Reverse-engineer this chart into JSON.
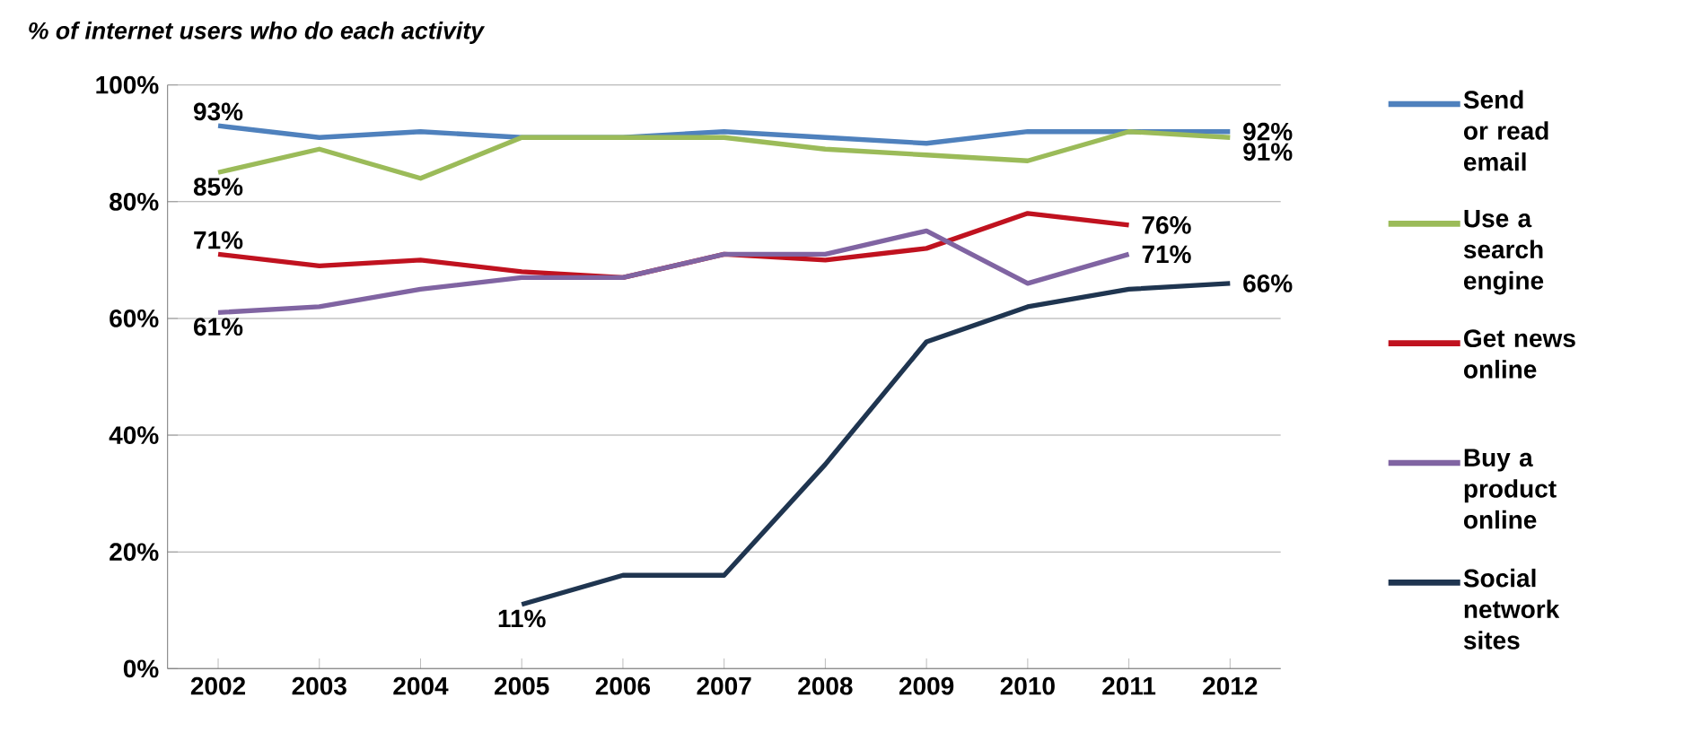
{
  "chart_data": {
    "type": "line",
    "title": "% of internet users who do each activity",
    "categories": [
      "2002",
      "2003",
      "2004",
      "2005",
      "2006",
      "2007",
      "2008",
      "2009",
      "2010",
      "2011",
      "2012"
    ],
    "series": [
      {
        "name": "Send or read email",
        "color": "#4f81bd",
        "values": [
          93,
          91,
          92,
          91,
          91,
          92,
          91,
          90,
          92,
          92,
          92
        ],
        "value_labels": [
          "93%",
          null,
          null,
          null,
          null,
          null,
          null,
          null,
          null,
          null,
          "92%"
        ]
      },
      {
        "name": "Use a search engine",
        "color": "#9bbb59",
        "values": [
          85,
          89,
          84,
          91,
          91,
          91,
          89,
          88,
          87,
          92,
          91
        ],
        "value_labels": [
          "85%",
          null,
          null,
          null,
          null,
          null,
          null,
          null,
          null,
          null,
          "91%"
        ]
      },
      {
        "name": "Get news online",
        "color": "#c0121f",
        "values": [
          71,
          69,
          70,
          68,
          67,
          71,
          70,
          72,
          78,
          76,
          null
        ],
        "value_labels": [
          "71%",
          null,
          null,
          null,
          null,
          null,
          null,
          null,
          null,
          "76%",
          null
        ]
      },
      {
        "name": "Buy a product online",
        "color": "#8064a2",
        "values": [
          61,
          62,
          65,
          67,
          67,
          71,
          71,
          75,
          66,
          71,
          null
        ],
        "value_labels": [
          "61%",
          null,
          null,
          null,
          null,
          null,
          null,
          null,
          null,
          "71%",
          null
        ]
      },
      {
        "name": "Social network sites",
        "color": "#1f3550",
        "values": [
          null,
          null,
          null,
          11,
          16,
          16,
          35,
          56,
          62,
          65,
          66
        ],
        "value_labels": [
          null,
          null,
          null,
          "11%",
          null,
          null,
          null,
          null,
          null,
          null,
          "66%"
        ]
      }
    ],
    "ylim": [
      0,
      100
    ],
    "yticks": [
      {
        "value": 0,
        "label": "0%"
      },
      {
        "value": 20,
        "label": "20%"
      },
      {
        "value": 40,
        "label": "40%"
      },
      {
        "value": 60,
        "label": "60%"
      },
      {
        "value": 80,
        "label": "80%"
      },
      {
        "value": 100,
        "label": "100%"
      }
    ],
    "grid": "y",
    "legend": "right",
    "marker": "none",
    "line_style": "solid"
  }
}
